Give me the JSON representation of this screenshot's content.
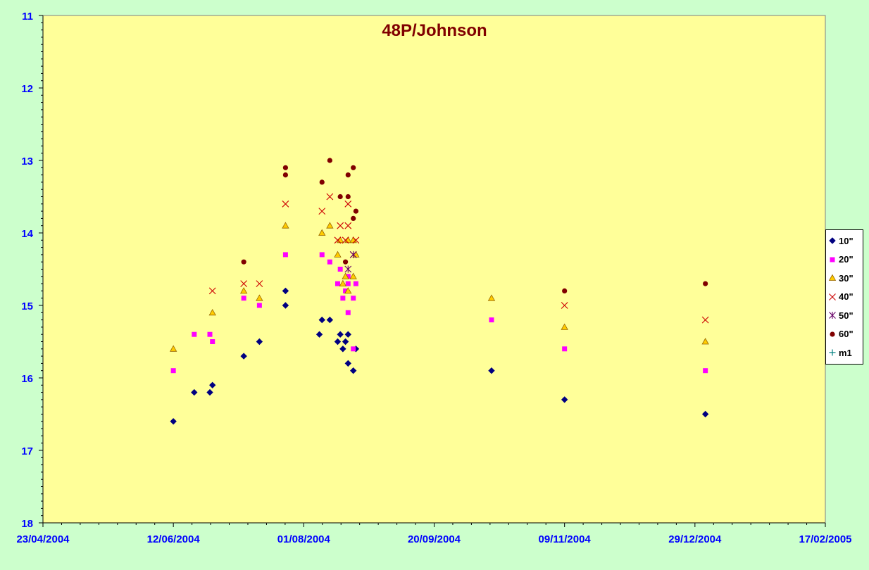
{
  "chart_data": {
    "type": "scatter",
    "title": "48P/Johnson",
    "xlabel": "",
    "ylabel": "",
    "x_axis": {
      "type": "date",
      "min": "2004-04-23",
      "max": "2005-02-17",
      "tick_labels": [
        "23/04/2004",
        "12/06/2004",
        "01/08/2004",
        "20/09/2004",
        "09/11/2004",
        "29/12/2004",
        "17/02/2005"
      ]
    },
    "y_axis": {
      "min": 11,
      "max": 18,
      "inverted": true,
      "tick_labels": [
        "11",
        "12",
        "13",
        "14",
        "15",
        "16",
        "17",
        "18"
      ]
    },
    "grid": false,
    "legend_position": "right",
    "colors": {
      "background": "#ccffcc",
      "plot_area": "#ffff99",
      "axis_text": "#0000ff",
      "title": "#800000"
    },
    "series": [
      {
        "name": "10\"",
        "marker": "diamond",
        "color": "#000080",
        "points": [
          [
            "2004-06-12",
            16.6
          ],
          [
            "2004-06-20",
            16.2
          ],
          [
            "2004-06-26",
            16.2
          ],
          [
            "2004-06-27",
            16.1
          ],
          [
            "2004-07-09",
            15.7
          ],
          [
            "2004-07-15",
            15.5
          ],
          [
            "2004-07-25",
            14.8
          ],
          [
            "2004-07-25",
            15.0
          ],
          [
            "2004-08-07",
            15.4
          ],
          [
            "2004-08-08",
            15.2
          ],
          [
            "2004-08-11",
            15.2
          ],
          [
            "2004-08-14",
            15.5
          ],
          [
            "2004-08-15",
            15.4
          ],
          [
            "2004-08-16",
            15.6
          ],
          [
            "2004-08-17",
            15.5
          ],
          [
            "2004-08-18",
            15.4
          ],
          [
            "2004-08-18",
            15.8
          ],
          [
            "2004-08-20",
            15.9
          ],
          [
            "2004-08-21",
            15.6
          ],
          [
            "2004-10-12",
            15.9
          ],
          [
            "2004-11-09",
            16.3
          ],
          [
            "2005-01-02",
            16.5
          ]
        ]
      },
      {
        "name": "20\"",
        "marker": "square",
        "color": "#ff00ff",
        "points": [
          [
            "2004-06-12",
            15.9
          ],
          [
            "2004-06-20",
            15.4
          ],
          [
            "2004-06-26",
            15.4
          ],
          [
            "2004-06-27",
            15.5
          ],
          [
            "2004-07-09",
            14.9
          ],
          [
            "2004-07-15",
            15.0
          ],
          [
            "2004-07-25",
            14.3
          ],
          [
            "2004-08-08",
            14.3
          ],
          [
            "2004-08-11",
            14.4
          ],
          [
            "2004-08-14",
            14.7
          ],
          [
            "2004-08-15",
            14.5
          ],
          [
            "2004-08-16",
            14.9
          ],
          [
            "2004-08-17",
            14.8
          ],
          [
            "2004-08-18",
            14.6
          ],
          [
            "2004-08-18",
            15.1
          ],
          [
            "2004-08-18",
            14.7
          ],
          [
            "2004-08-20",
            14.9
          ],
          [
            "2004-08-20",
            15.6
          ],
          [
            "2004-08-21",
            14.7
          ],
          [
            "2004-10-12",
            15.2
          ],
          [
            "2004-11-09",
            15.6
          ],
          [
            "2005-01-02",
            15.9
          ]
        ]
      },
      {
        "name": "30\"",
        "marker": "triangle",
        "color": "#ffcc00",
        "points": [
          [
            "2004-06-12",
            15.6
          ],
          [
            "2004-06-27",
            15.1
          ],
          [
            "2004-07-09",
            14.8
          ],
          [
            "2004-07-15",
            14.9
          ],
          [
            "2004-07-25",
            13.9
          ],
          [
            "2004-08-08",
            14.0
          ],
          [
            "2004-08-11",
            13.9
          ],
          [
            "2004-08-14",
            14.3
          ],
          [
            "2004-08-15",
            14.1
          ],
          [
            "2004-08-16",
            14.7
          ],
          [
            "2004-08-17",
            14.6
          ],
          [
            "2004-08-18",
            14.1
          ],
          [
            "2004-08-18",
            14.8
          ],
          [
            "2004-08-20",
            14.1
          ],
          [
            "2004-08-20",
            14.6
          ],
          [
            "2004-08-21",
            14.3
          ],
          [
            "2004-10-12",
            14.9
          ],
          [
            "2004-11-09",
            15.3
          ],
          [
            "2005-01-02",
            15.5
          ]
        ]
      },
      {
        "name": "40\"",
        "marker": "x",
        "color": "#cc0000",
        "points": [
          [
            "2004-06-27",
            14.8
          ],
          [
            "2004-07-09",
            14.7
          ],
          [
            "2004-07-15",
            14.7
          ],
          [
            "2004-07-25",
            13.6
          ],
          [
            "2004-08-08",
            13.7
          ],
          [
            "2004-08-11",
            13.5
          ],
          [
            "2004-08-14",
            14.1
          ],
          [
            "2004-08-15",
            13.9
          ],
          [
            "2004-08-17",
            14.1
          ],
          [
            "2004-08-18",
            13.9
          ],
          [
            "2004-08-18",
            13.6
          ],
          [
            "2004-08-20",
            14.3
          ],
          [
            "2004-08-21",
            14.1
          ],
          [
            "2004-11-09",
            15.0
          ],
          [
            "2005-01-02",
            15.2
          ]
        ]
      },
      {
        "name": "50\"",
        "marker": "star",
        "color": "#660066",
        "points": [
          [
            "2004-08-18",
            14.5
          ],
          [
            "2004-08-20",
            14.3
          ]
        ]
      },
      {
        "name": "60\"",
        "marker": "circle",
        "color": "#800000",
        "points": [
          [
            "2004-07-09",
            14.4
          ],
          [
            "2004-07-25",
            13.1
          ],
          [
            "2004-07-25",
            13.2
          ],
          [
            "2004-08-08",
            13.3
          ],
          [
            "2004-08-11",
            13.0
          ],
          [
            "2004-08-15",
            13.5
          ],
          [
            "2004-08-17",
            14.4
          ],
          [
            "2004-08-18",
            13.5
          ],
          [
            "2004-08-18",
            13.2
          ],
          [
            "2004-08-20",
            13.1
          ],
          [
            "2004-08-20",
            13.8
          ],
          [
            "2004-08-21",
            13.7
          ],
          [
            "2004-11-09",
            14.8
          ],
          [
            "2005-01-02",
            14.7
          ]
        ]
      },
      {
        "name": "m1",
        "marker": "plus",
        "color": "#008080",
        "points": []
      }
    ]
  }
}
